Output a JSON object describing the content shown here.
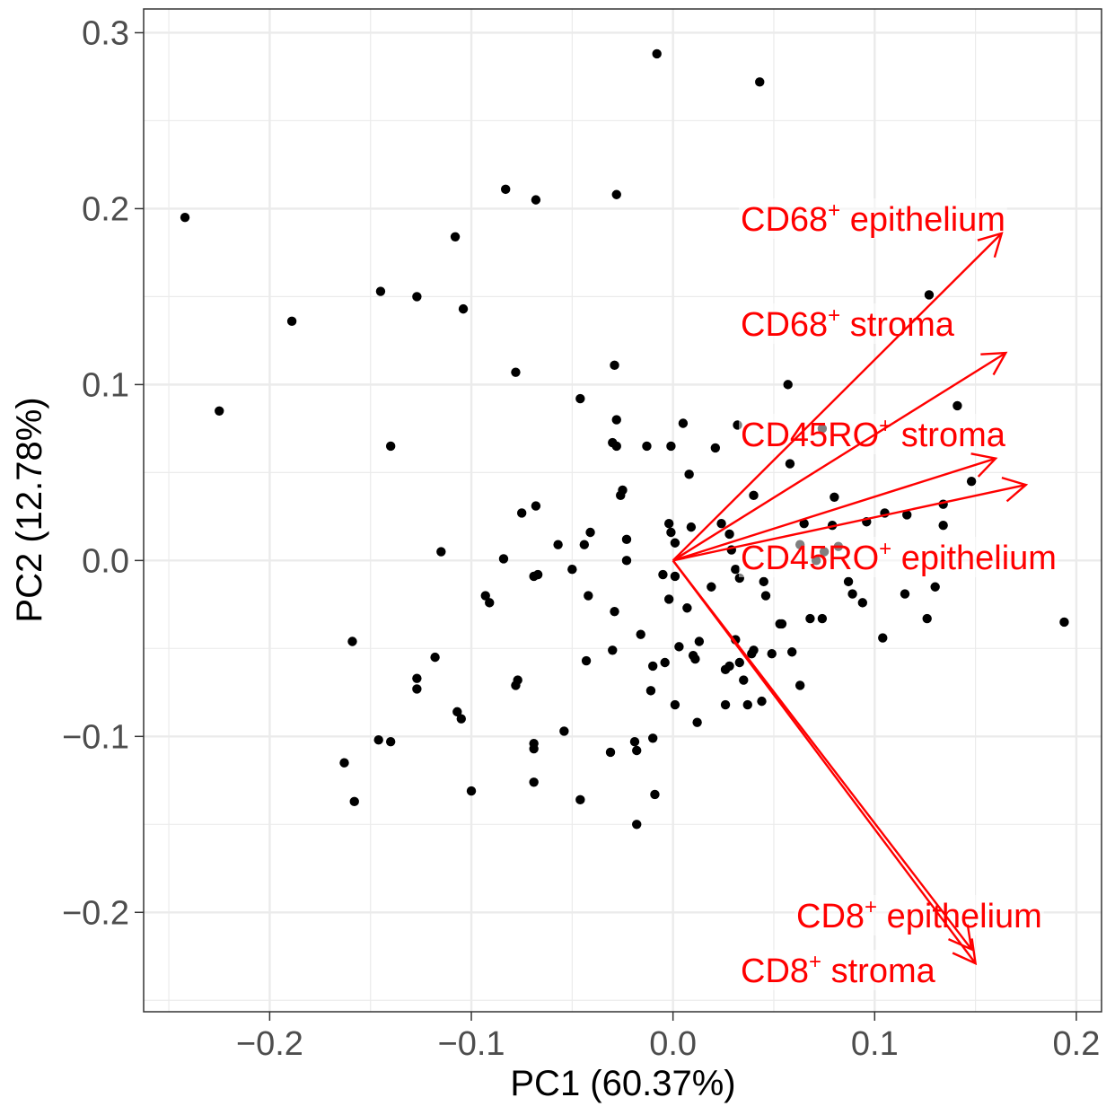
{
  "chart_data": {
    "type": "scatter",
    "title": "",
    "xlabel": "PC1 (60.37%)",
    "ylabel": "PC2 (12.78%)",
    "xlim": [
      -0.2625,
      0.2125
    ],
    "ylim": [
      -0.2565,
      0.3135
    ],
    "x_ticks": [
      {
        "value": -0.2,
        "label": "−0.2"
      },
      {
        "value": -0.1,
        "label": "−0.1"
      },
      {
        "value": 0.0,
        "label": "0.0"
      },
      {
        "value": 0.1,
        "label": "0.1"
      },
      {
        "value": 0.2,
        "label": "0.2"
      }
    ],
    "y_ticks": [
      {
        "value": -0.2,
        "label": "−0.2"
      },
      {
        "value": -0.1,
        "label": "−0.1"
      },
      {
        "value": 0.0,
        "label": "0.0"
      },
      {
        "value": 0.1,
        "label": "0.1"
      },
      {
        "value": 0.2,
        "label": "0.2"
      },
      {
        "value": 0.3,
        "label": "0.3"
      }
    ],
    "grid": true,
    "point_color": "#000000",
    "arrow_color": "#ff0000",
    "points": [
      [
        -0.242,
        0.195
      ],
      [
        -0.225,
        0.085
      ],
      [
        -0.189,
        0.136
      ],
      [
        -0.145,
        0.153
      ],
      [
        -0.127,
        0.15
      ],
      [
        -0.108,
        0.184
      ],
      [
        -0.104,
        0.143
      ],
      [
        -0.083,
        0.211
      ],
      [
        -0.068,
        0.205
      ],
      [
        -0.028,
        0.208
      ],
      [
        -0.008,
        0.288
      ],
      [
        0.043,
        0.272
      ],
      [
        -0.14,
        0.065
      ],
      [
        -0.078,
        0.107
      ],
      [
        -0.046,
        0.092
      ],
      [
        -0.029,
        0.111
      ],
      [
        -0.028,
        0.08
      ],
      [
        -0.03,
        0.067
      ],
      [
        -0.028,
        0.065
      ],
      [
        -0.013,
        0.065
      ],
      [
        -0.001,
        0.065
      ],
      [
        0.005,
        0.078
      ],
      [
        0.008,
        0.049
      ],
      [
        0.04,
        0.037
      ],
      [
        0.032,
        0.077
      ],
      [
        0.021,
        0.064
      ],
      [
        0.057,
        0.1
      ],
      [
        0.058,
        0.055
      ],
      [
        0.074,
        0.075
      ],
      [
        0.08,
        0.036
      ],
      [
        0.127,
        0.151
      ],
      [
        0.141,
        0.088
      ],
      [
        0.148,
        0.045
      ],
      [
        0.134,
        0.032
      ],
      [
        0.134,
        0.02
      ],
      [
        0.105,
        0.027
      ],
      [
        0.116,
        0.026
      ],
      [
        0.096,
        0.022
      ],
      [
        0.079,
        0.02
      ],
      [
        0.065,
        0.021
      ],
      [
        0.082,
        0.008
      ],
      [
        0.075,
        0.005
      ],
      [
        0.071,
        0.0
      ],
      [
        0.063,
        0.009
      ],
      [
        0.029,
        0.006
      ],
      [
        0.024,
        0.021
      ],
      [
        0.028,
        0.015
      ],
      [
        -0.025,
        0.04
      ],
      [
        -0.026,
        0.037
      ],
      [
        -0.075,
        0.027
      ],
      [
        -0.068,
        0.031
      ],
      [
        -0.115,
        0.005
      ],
      [
        -0.084,
        0.001
      ],
      [
        -0.057,
        0.009
      ],
      [
        -0.041,
        0.016
      ],
      [
        -0.044,
        0.009
      ],
      [
        -0.023,
        0.012
      ],
      [
        -0.023,
        0.0
      ],
      [
        -0.002,
        0.021
      ],
      [
        0.009,
        0.019
      ],
      [
        -0.001,
        0.016
      ],
      [
        0.001,
        0.01
      ],
      [
        -0.067,
        -0.008
      ],
      [
        -0.069,
        -0.009
      ],
      [
        -0.05,
        -0.005
      ],
      [
        -0.042,
        -0.02
      ],
      [
        -0.029,
        -0.029
      ],
      [
        -0.005,
        -0.008
      ],
      [
        0.001,
        -0.009
      ],
      [
        -0.002,
        -0.022
      ],
      [
        0.007,
        -0.027
      ],
      [
        0.019,
        -0.015
      ],
      [
        0.031,
        -0.005
      ],
      [
        0.033,
        -0.01
      ],
      [
        0.045,
        -0.012
      ],
      [
        0.046,
        -0.02
      ],
      [
        0.053,
        -0.036
      ],
      [
        0.068,
        -0.033
      ],
      [
        0.074,
        -0.033
      ],
      [
        0.087,
        -0.012
      ],
      [
        0.089,
        -0.019
      ],
      [
        0.094,
        -0.024
      ],
      [
        0.115,
        -0.019
      ],
      [
        0.126,
        -0.033
      ],
      [
        0.13,
        -0.015
      ],
      [
        0.104,
        -0.044
      ],
      [
        0.194,
        -0.035
      ],
      [
        -0.159,
        -0.046
      ],
      [
        -0.118,
        -0.055
      ],
      [
        -0.093,
        -0.02
      ],
      [
        -0.091,
        -0.024
      ],
      [
        -0.127,
        -0.067
      ],
      [
        -0.127,
        -0.073
      ],
      [
        -0.107,
        -0.086
      ],
      [
        -0.105,
        -0.09
      ],
      [
        -0.078,
        -0.071
      ],
      [
        -0.077,
        -0.068
      ],
      [
        -0.043,
        -0.057
      ],
      [
        -0.03,
        -0.051
      ],
      [
        -0.016,
        -0.042
      ],
      [
        -0.01,
        -0.06
      ],
      [
        -0.004,
        -0.058
      ],
      [
        0.003,
        -0.049
      ],
      [
        0.01,
        -0.054
      ],
      [
        0.011,
        -0.056
      ],
      [
        0.013,
        -0.046
      ],
      [
        0.026,
        -0.062
      ],
      [
        0.028,
        -0.06
      ],
      [
        0.031,
        -0.045
      ],
      [
        0.033,
        -0.058
      ],
      [
        0.035,
        -0.068
      ],
      [
        0.039,
        -0.053
      ],
      [
        0.04,
        -0.051
      ],
      [
        0.049,
        -0.053
      ],
      [
        0.054,
        -0.036
      ],
      [
        0.059,
        -0.052
      ],
      [
        0.063,
        -0.071
      ],
      [
        0.037,
        -0.082
      ],
      [
        0.044,
        -0.08
      ],
      [
        -0.011,
        -0.074
      ],
      [
        0.001,
        -0.082
      ],
      [
        0.012,
        -0.092
      ],
      [
        0.026,
        -0.082
      ],
      [
        -0.054,
        -0.097
      ],
      [
        -0.069,
        -0.107
      ],
      [
        -0.069,
        -0.104
      ],
      [
        -0.069,
        -0.126
      ],
      [
        -0.1,
        -0.131
      ],
      [
        -0.046,
        -0.136
      ],
      [
        -0.031,
        -0.109
      ],
      [
        -0.019,
        -0.103
      ],
      [
        -0.018,
        -0.108
      ],
      [
        -0.01,
        -0.101
      ],
      [
        -0.009,
        -0.133
      ],
      [
        -0.018,
        -0.15
      ],
      [
        -0.146,
        -0.102
      ],
      [
        -0.14,
        -0.103
      ],
      [
        -0.163,
        -0.115
      ],
      [
        -0.158,
        -0.137
      ]
    ],
    "loadings": [
      {
        "label_parts": [
          "CD68",
          "+",
          " epithelium"
        ],
        "x": 0.163,
        "y": 0.186
      },
      {
        "label_parts": [
          "CD68",
          "+",
          " stroma"
        ],
        "x": 0.165,
        "y": 0.118
      },
      {
        "label_parts": [
          "CD45RO",
          "+",
          " stroma"
        ],
        "x": 0.16,
        "y": 0.058
      },
      {
        "label_parts": [
          "CD45RO",
          "+",
          " epithelium"
        ],
        "x": 0.175,
        "y": 0.043
      },
      {
        "label_parts": [
          "CD8",
          "+",
          " epithelium"
        ],
        "x": 0.148,
        "y": -0.221
      },
      {
        "label_parts": [
          "CD8",
          "+",
          " stroma"
        ],
        "x": 0.15,
        "y": -0.229
      }
    ]
  }
}
